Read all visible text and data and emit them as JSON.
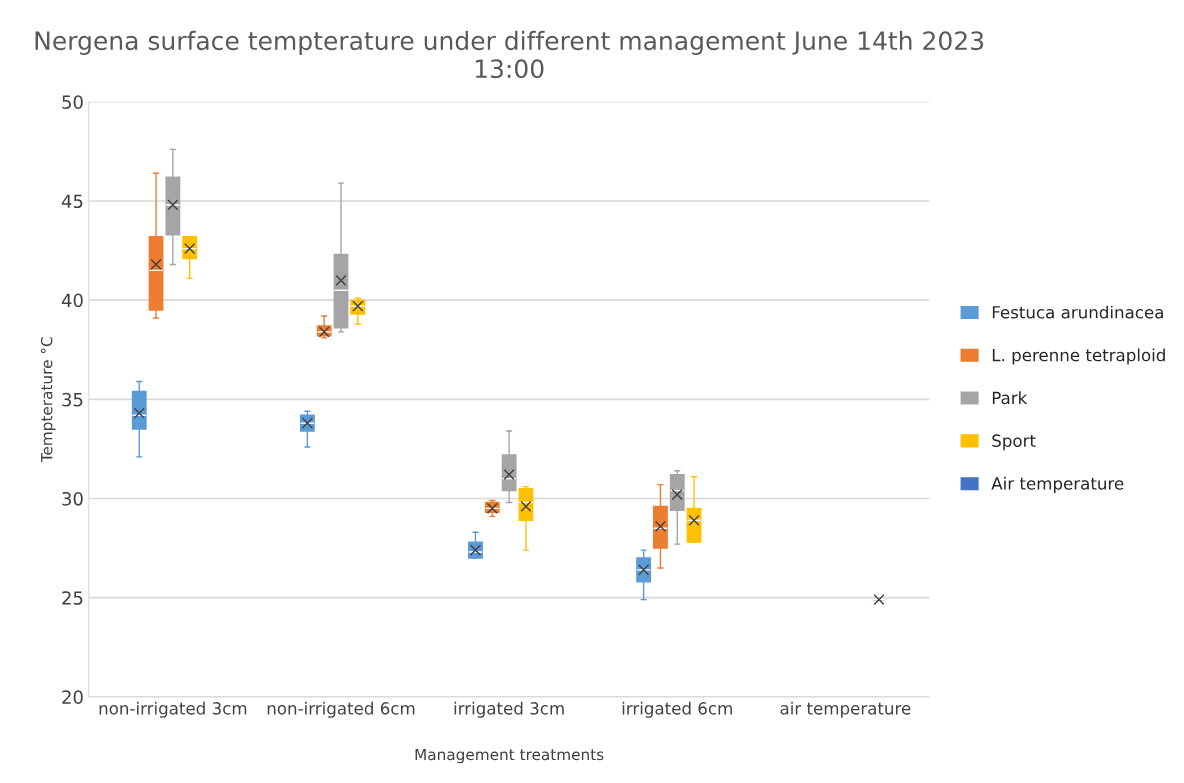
{
  "chart_data": {
    "type": "box",
    "title": "Nergena surface tempterature under different management June 14th 2023 13:00",
    "xlabel": "Management treatments",
    "ylabel": "Tempterature °C",
    "categories": [
      "non-irrigated 3cm",
      "non-irrigated 6cm",
      "irrigated 3cm",
      "irrigated 6cm",
      "air temperature"
    ],
    "ylim": [
      20,
      50
    ],
    "yticks": [
      20,
      25,
      30,
      35,
      40,
      45,
      50
    ],
    "grid": "y",
    "legend": "right",
    "series": [
      {
        "name": "Festuca arundinacea",
        "color": "#5b9bd5",
        "boxes": [
          {
            "low": 32.1,
            "q1": 33.5,
            "median": 34.2,
            "q3": 35.4,
            "high": 35.9,
            "mean": 34.3
          },
          {
            "low": 32.6,
            "q1": 33.4,
            "median": 33.8,
            "q3": 34.2,
            "high": 34.4,
            "mean": 33.8
          },
          {
            "low": 27.0,
            "q1": 27.0,
            "median": 27.3,
            "q3": 27.8,
            "high": 28.3,
            "mean": 27.4
          },
          {
            "low": 24.9,
            "q1": 25.8,
            "median": 26.4,
            "q3": 27.0,
            "high": 27.4,
            "mean": 26.4
          },
          null
        ]
      },
      {
        "name": "L. perenne tetraploid",
        "color": "#ed7d31",
        "boxes": [
          {
            "low": 39.1,
            "q1": 39.5,
            "median": 41.5,
            "q3": 43.2,
            "high": 46.4,
            "mean": 41.8
          },
          {
            "low": 38.1,
            "q1": 38.2,
            "median": 38.4,
            "q3": 38.7,
            "high": 39.2,
            "mean": 38.4
          },
          {
            "low": 29.1,
            "q1": 29.3,
            "median": 29.5,
            "q3": 29.8,
            "high": 29.9,
            "mean": 29.5
          },
          {
            "low": 26.5,
            "q1": 27.5,
            "median": 28.5,
            "q3": 29.6,
            "high": 30.7,
            "mean": 28.6
          },
          null
        ]
      },
      {
        "name": "Park",
        "color": "#a5a5a5",
        "boxes": [
          {
            "low": 41.8,
            "q1": 43.3,
            "median": 44.8,
            "q3": 46.2,
            "high": 47.6,
            "mean": 44.8
          },
          {
            "low": 38.4,
            "q1": 38.6,
            "median": 40.5,
            "q3": 42.3,
            "high": 45.9,
            "mean": 41.0
          },
          {
            "low": 29.8,
            "q1": 30.4,
            "median": 31.0,
            "q3": 32.2,
            "high": 33.4,
            "mean": 31.2
          },
          {
            "low": 27.7,
            "q1": 29.4,
            "median": 30.4,
            "q3": 31.2,
            "high": 31.4,
            "mean": 30.2
          },
          null
        ]
      },
      {
        "name": "Sport",
        "color": "#ffc000",
        "boxes": [
          {
            "low": 41.1,
            "q1": 42.1,
            "median": 42.6,
            "q3": 43.2,
            "high": 43.2,
            "mean": 42.6
          },
          {
            "low": 38.8,
            "q1": 39.3,
            "median": 39.7,
            "q3": 40.0,
            "high": 40.1,
            "mean": 39.7
          },
          {
            "low": 27.4,
            "q1": 28.9,
            "median": 29.8,
            "q3": 30.5,
            "high": 30.6,
            "mean": 29.6
          },
          {
            "low": 27.8,
            "q1": 27.8,
            "median": 28.9,
            "q3": 29.5,
            "high": 31.1,
            "mean": 28.9
          },
          null
        ]
      },
      {
        "name": "Air temperature",
        "color": "#4472c4",
        "boxes": [
          null,
          null,
          null,
          null,
          {
            "low": 24.9,
            "q1": 24.9,
            "median": 24.9,
            "q3": 24.9,
            "high": 24.9,
            "mean": 24.9
          }
        ]
      }
    ]
  }
}
